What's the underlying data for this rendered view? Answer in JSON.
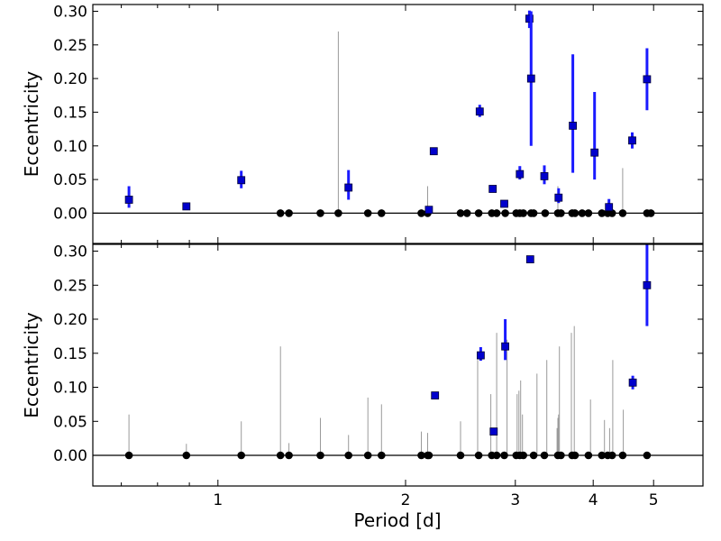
{
  "chart_data": [
    {
      "type": "scatter",
      "panel": "top",
      "xlabel": "",
      "ylabel": "Eccentricity",
      "xscale": "log",
      "xlim": [
        0.63,
        6.0
      ],
      "ylim": [
        -0.045,
        0.31
      ],
      "yticks": [
        "0.00",
        "0.05",
        "0.10",
        "0.15",
        "0.20",
        "0.25",
        "0.30"
      ],
      "xticks": [],
      "grid": false,
      "zero_line": true,
      "measured_points": [
        {
          "period": 0.72,
          "e": 0.02,
          "err_lo": 0.012,
          "err_hi": 0.02
        },
        {
          "period": 0.89,
          "e": 0.01,
          "err_lo": 0.0,
          "err_hi": 0.0
        },
        {
          "period": 1.09,
          "e": 0.049,
          "err_lo": 0.012,
          "err_hi": 0.014
        },
        {
          "period": 1.62,
          "e": 0.038,
          "err_lo": 0.018,
          "err_hi": 0.026
        },
        {
          "period": 2.18,
          "e": 0.005,
          "err_lo": 0.003,
          "err_hi": 0.003
        },
        {
          "period": 2.22,
          "e": 0.092,
          "err_lo": 0.0,
          "err_hi": 0.0
        },
        {
          "period": 2.63,
          "e": 0.151,
          "err_lo": 0.008,
          "err_hi": 0.01
        },
        {
          "period": 2.76,
          "e": 0.036,
          "err_lo": 0.0,
          "err_hi": 0.0
        },
        {
          "period": 2.88,
          "e": 0.014,
          "err_lo": 0.0,
          "err_hi": 0.0
        },
        {
          "period": 3.05,
          "e": 0.058,
          "err_lo": 0.008,
          "err_hi": 0.012
        },
        {
          "period": 3.16,
          "e": 0.289,
          "err_lo": 0.014,
          "err_hi": 0.012
        },
        {
          "period": 3.18,
          "e": 0.2,
          "err_lo": 0.1,
          "err_hi": 0.1
        },
        {
          "period": 3.34,
          "e": 0.055,
          "err_lo": 0.012,
          "err_hi": 0.016
        },
        {
          "period": 3.52,
          "e": 0.023,
          "err_lo": 0.008,
          "err_hi": 0.014
        },
        {
          "period": 3.71,
          "e": 0.13,
          "err_lo": 0.07,
          "err_hi": 0.106
        },
        {
          "period": 4.02,
          "e": 0.09,
          "err_lo": 0.04,
          "err_hi": 0.09
        },
        {
          "period": 4.24,
          "e": 0.009,
          "err_lo": 0.004,
          "err_hi": 0.012
        },
        {
          "period": 4.62,
          "e": 0.108,
          "err_lo": 0.012,
          "err_hi": 0.012
        },
        {
          "period": 4.88,
          "e": 0.199,
          "err_lo": 0.046,
          "err_hi": 0.046
        }
      ],
      "zero_points": [
        1.26,
        1.3,
        1.46,
        1.56,
        1.74,
        1.83,
        2.12,
        2.17,
        2.45,
        2.51,
        2.62,
        2.75,
        2.8,
        2.89,
        3.01,
        3.05,
        3.09,
        3.18,
        3.21,
        3.35,
        3.51,
        3.55,
        3.7,
        3.74,
        3.84,
        3.93,
        4.13,
        4.22,
        4.29,
        4.46,
        4.88,
        4.95
      ],
      "limit_lines": [
        {
          "period": 1.56,
          "e": 0.27
        },
        {
          "period": 2.17,
          "e": 0.04
        },
        {
          "period": 3.51,
          "e": 0.04
        },
        {
          "period": 4.46,
          "e": 0.067
        }
      ]
    },
    {
      "type": "scatter",
      "panel": "bottom",
      "xlabel": "Period [d]",
      "ylabel": "Eccentricity",
      "xscale": "log",
      "xlim": [
        0.63,
        6.0
      ],
      "ylim": [
        -0.045,
        0.31
      ],
      "yticks": [
        "0.00",
        "0.05",
        "0.10",
        "0.15",
        "0.20",
        "0.25",
        "0.30"
      ],
      "xticks": [
        {
          "value": 1,
          "label": "1"
        },
        {
          "value": 2,
          "label": "2"
        },
        {
          "value": 3,
          "label": "3"
        },
        {
          "value": 4,
          "label": "4"
        },
        {
          "value": 5,
          "label": "5"
        }
      ],
      "grid": false,
      "zero_line": true,
      "measured_points": [
        {
          "period": 2.23,
          "e": 0.088,
          "err_lo": 0.0,
          "err_hi": 0.0
        },
        {
          "period": 2.64,
          "e": 0.147,
          "err_lo": 0.008,
          "err_hi": 0.012
        },
        {
          "period": 2.77,
          "e": 0.035,
          "err_lo": 0.0,
          "err_hi": 0.0
        },
        {
          "period": 2.89,
          "e": 0.16,
          "err_lo": 0.02,
          "err_hi": 0.04
        },
        {
          "period": 3.17,
          "e": 0.288,
          "err_lo": 0.0,
          "err_hi": 0.0
        },
        {
          "period": 4.63,
          "e": 0.107,
          "err_lo": 0.01,
          "err_hi": 0.01
        },
        {
          "period": 4.88,
          "e": 0.25,
          "err_lo": 0.06,
          "err_hi": 0.07
        }
      ],
      "zero_points": [
        0.72,
        0.89,
        1.09,
        1.26,
        1.3,
        1.46,
        1.62,
        1.74,
        1.83,
        2.12,
        2.17,
        2.18,
        2.45,
        2.62,
        2.75,
        2.8,
        2.88,
        3.01,
        3.05,
        3.09,
        3.21,
        3.34,
        3.51,
        3.55,
        3.7,
        3.74,
        3.93,
        4.13,
        4.22,
        4.29,
        4.46,
        4.88
      ],
      "limit_lines": [
        {
          "period": 0.72,
          "e": 0.06
        },
        {
          "period": 0.89,
          "e": 0.017
        },
        {
          "period": 1.09,
          "e": 0.05
        },
        {
          "period": 1.26,
          "e": 0.16
        },
        {
          "period": 1.3,
          "e": 0.018
        },
        {
          "period": 1.46,
          "e": 0.055
        },
        {
          "period": 1.62,
          "e": 0.03
        },
        {
          "period": 1.74,
          "e": 0.085
        },
        {
          "period": 1.83,
          "e": 0.075
        },
        {
          "period": 2.12,
          "e": 0.035
        },
        {
          "period": 2.17,
          "e": 0.033
        },
        {
          "period": 2.45,
          "e": 0.05
        },
        {
          "period": 2.61,
          "e": 0.14
        },
        {
          "period": 2.74,
          "e": 0.09
        },
        {
          "period": 2.8,
          "e": 0.18
        },
        {
          "period": 2.91,
          "e": 0.17
        },
        {
          "period": 3.02,
          "e": 0.09
        },
        {
          "period": 3.04,
          "e": 0.095
        },
        {
          "period": 3.06,
          "e": 0.11
        },
        {
          "period": 3.08,
          "e": 0.06
        },
        {
          "period": 3.25,
          "e": 0.12
        },
        {
          "period": 3.37,
          "e": 0.14
        },
        {
          "period": 3.5,
          "e": 0.04
        },
        {
          "period": 3.51,
          "e": 0.055
        },
        {
          "period": 3.52,
          "e": 0.06
        },
        {
          "period": 3.53,
          "e": 0.16
        },
        {
          "period": 3.69,
          "e": 0.18
        },
        {
          "period": 3.73,
          "e": 0.19
        },
        {
          "period": 3.96,
          "e": 0.082
        },
        {
          "period": 4.17,
          "e": 0.052
        },
        {
          "period": 4.25,
          "e": 0.04
        },
        {
          "period": 4.3,
          "e": 0.14
        },
        {
          "period": 4.47,
          "e": 0.067
        }
      ]
    }
  ],
  "colors": {
    "measured_marker": "#0000cc",
    "measured_error": "#1a1aff",
    "zero_marker": "#000000",
    "limit_line": "#9a9a9a",
    "axis": "#000000",
    "zero_line": "#000000"
  }
}
